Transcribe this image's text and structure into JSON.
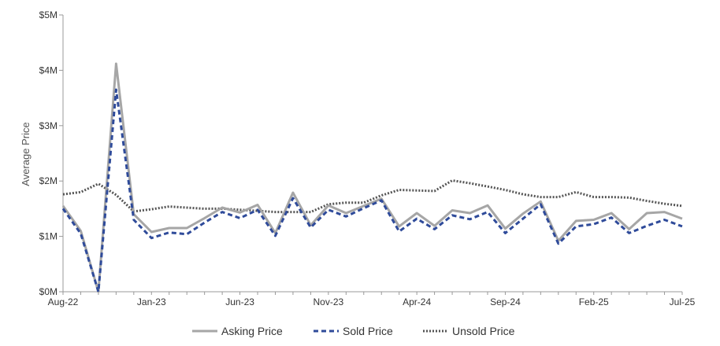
{
  "chart_data": {
    "type": "line",
    "title": "",
    "xlabel": "",
    "ylabel": "Average Price",
    "ylim": [
      0,
      5000000
    ],
    "yticks": [
      {
        "value": 0,
        "label": "$0M"
      },
      {
        "value": 1000000,
        "label": "$1M"
      },
      {
        "value": 2000000,
        "label": "$2M"
      },
      {
        "value": 3000000,
        "label": "$3M"
      },
      {
        "value": 4000000,
        "label": "$4M"
      },
      {
        "value": 5000000,
        "label": "$5M"
      }
    ],
    "xticks": [
      {
        "index": 0,
        "label": "Aug-22"
      },
      {
        "index": 5,
        "label": "Jan-23"
      },
      {
        "index": 10,
        "label": "Jun-23"
      },
      {
        "index": 15,
        "label": "Nov-23"
      },
      {
        "index": 20,
        "label": "Apr-24"
      },
      {
        "index": 25,
        "label": "Sep-24"
      },
      {
        "index": 30,
        "label": "Feb-25"
      },
      {
        "index": 35,
        "label": "Jul-25"
      }
    ],
    "x": [
      "Aug-22",
      "Sep-22",
      "Oct-22",
      "Nov-22",
      "Dec-22",
      "Jan-23",
      "Feb-23",
      "Mar-23",
      "Apr-23",
      "May-23",
      "Jun-23",
      "Jul-23",
      "Aug-23",
      "Sep-23",
      "Oct-23",
      "Nov-23",
      "Dec-23",
      "Jan-24",
      "Feb-24",
      "Mar-24",
      "Apr-24",
      "May-24",
      "Jun-24",
      "Jul-24",
      "Aug-24",
      "Sep-24",
      "Oct-24",
      "Nov-24",
      "Dec-24",
      "Jan-25",
      "Feb-25",
      "Mar-25",
      "Apr-25",
      "May-25",
      "Jun-25",
      "Jul-25"
    ],
    "grid": false,
    "legend_position": "bottom",
    "series": [
      {
        "name": "Asking Price",
        "color": "#a6a6a6",
        "style": "solid",
        "values": [
          1550000,
          1100000,
          0,
          4120000,
          1400000,
          1080000,
          1150000,
          1150000,
          1330000,
          1520000,
          1430000,
          1570000,
          1060000,
          1790000,
          1200000,
          1560000,
          1420000,
          1550000,
          1680000,
          1180000,
          1420000,
          1190000,
          1470000,
          1420000,
          1560000,
          1140000,
          1410000,
          1630000,
          920000,
          1280000,
          1300000,
          1420000,
          1130000,
          1420000,
          1440000,
          1320000
        ]
      },
      {
        "name": "Sold Price",
        "color": "#2f4b9a",
        "style": "dashed",
        "values": [
          1500000,
          1050000,
          0,
          3650000,
          1300000,
          970000,
          1070000,
          1040000,
          1250000,
          1440000,
          1330000,
          1480000,
          1010000,
          1690000,
          1160000,
          1480000,
          1360000,
          1510000,
          1650000,
          1090000,
          1320000,
          1130000,
          1380000,
          1310000,
          1440000,
          1060000,
          1320000,
          1580000,
          870000,
          1180000,
          1220000,
          1340000,
          1060000,
          1190000,
          1300000,
          1180000
        ]
      },
      {
        "name": "Unsold Price",
        "color": "#555555",
        "style": "dotted",
        "values": [
          1760000,
          1800000,
          1950000,
          1750000,
          1450000,
          1490000,
          1540000,
          1520000,
          1500000,
          1500000,
          1480000,
          1460000,
          1440000,
          1440000,
          1440000,
          1580000,
          1610000,
          1610000,
          1740000,
          1840000,
          1830000,
          1820000,
          2010000,
          1960000,
          1900000,
          1840000,
          1760000,
          1710000,
          1710000,
          1800000,
          1710000,
          1710000,
          1700000,
          1640000,
          1590000,
          1550000
        ]
      }
    ]
  }
}
